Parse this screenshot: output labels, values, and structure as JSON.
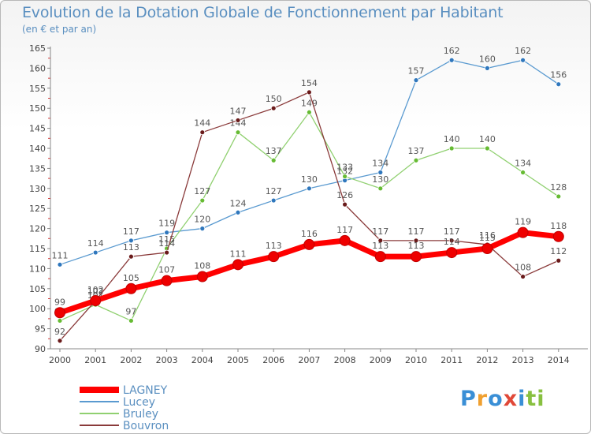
{
  "chart_data": {
    "type": "line",
    "title": "Evolution de la Dotation Globale de Fonctionnement par Habitant",
    "subtitle": "(en € et par an)",
    "xlabel": "",
    "ylabel": "",
    "ylim": [
      90,
      165
    ],
    "yticks": [
      90,
      95,
      100,
      105,
      110,
      115,
      120,
      125,
      130,
      135,
      140,
      145,
      150,
      155,
      160,
      165
    ],
    "x": [
      "2000",
      "2001",
      "2002",
      "2003",
      "2004",
      "2005",
      "2006",
      "2007",
      "2008",
      "2009",
      "2010",
      "2011",
      "2012",
      "2013",
      "2014"
    ],
    "series": [
      {
        "name": "Lucey",
        "color": "#5a9ad0",
        "marker": "#2f77bd",
        "values": [
          111,
          114,
          117,
          119,
          120,
          124,
          127,
          130,
          132,
          134,
          157,
          162,
          160,
          162,
          156
        ]
      },
      {
        "name": "Bruley",
        "color": "#90d070",
        "marker": "#66bb33",
        "values": [
          97,
          101,
          97,
          115,
          127,
          144,
          137,
          149,
          133,
          130,
          137,
          140,
          140,
          134,
          128
        ]
      },
      {
        "name": "Bouvron",
        "color": "#8a3a3a",
        "marker": "#6a1a1a",
        "values": [
          92,
          102,
          113,
          114,
          144,
          147,
          150,
          154,
          126,
          117,
          117,
          117,
          116,
          108,
          112
        ]
      },
      {
        "name": "LAGNEY",
        "color": "#ff0000",
        "marker": "#ee0000",
        "values": [
          99,
          102,
          105,
          107,
          108,
          111,
          113,
          116,
          117,
          113,
          113,
          114,
          115,
          119,
          118
        ]
      }
    ],
    "legend": {
      "position": "bottom-left",
      "order": [
        "LAGNEY",
        "Lucey",
        "Bruley",
        "Bouvron"
      ]
    },
    "grid": false
  },
  "branding": {
    "logo_letters": [
      "P",
      "r",
      "o",
      "x",
      "i",
      "ti"
    ]
  }
}
